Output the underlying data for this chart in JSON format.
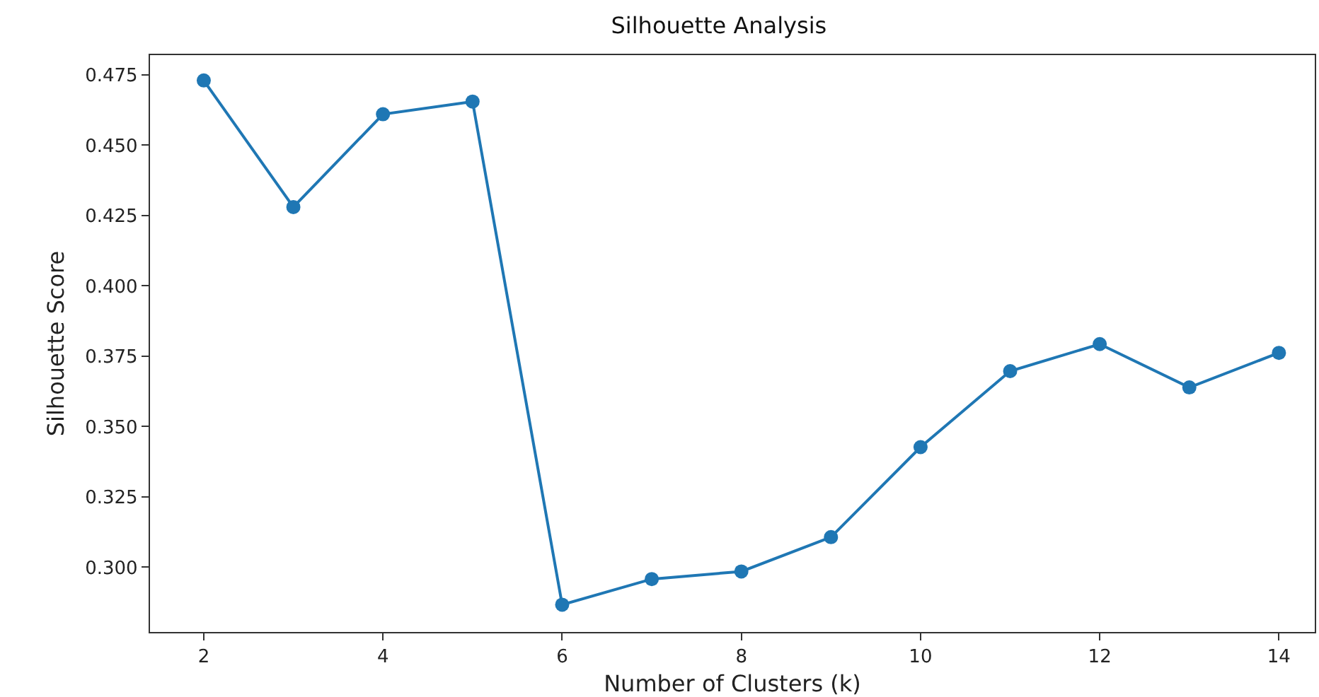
{
  "chart_data": {
    "type": "line",
    "title": "Silhouette Analysis",
    "xlabel": "Number of Clusters (k)",
    "ylabel": "Silhouette Score",
    "x": [
      2,
      3,
      4,
      5,
      6,
      7,
      8,
      9,
      10,
      11,
      12,
      13,
      14
    ],
    "series": [
      {
        "color": "#1f77b4",
        "values": [
          0.473,
          0.428,
          0.461,
          0.4655,
          0.2867,
          0.2958,
          0.2985,
          0.3107,
          0.3427,
          0.3697,
          0.3793,
          0.3639,
          0.3762
        ]
      }
    ],
    "xlim": [
      1.4,
      14.4
    ],
    "xticks": [
      2,
      4,
      6,
      8,
      10,
      12,
      14
    ],
    "ylim": [
      0.277,
      0.482
    ],
    "yticks": [
      {
        "value": 0.3,
        "label": "0.300"
      },
      {
        "value": 0.325,
        "label": "0.325"
      },
      {
        "value": 0.35,
        "label": "0.350"
      },
      {
        "value": 0.375,
        "label": "0.375"
      },
      {
        "value": 0.4,
        "label": "0.400"
      },
      {
        "value": 0.425,
        "label": "0.425"
      },
      {
        "value": 0.45,
        "label": "0.450"
      },
      {
        "value": 0.475,
        "label": "0.475"
      }
    ],
    "grid": false,
    "legend": false,
    "marker": "circle",
    "line_style": "solid"
  }
}
